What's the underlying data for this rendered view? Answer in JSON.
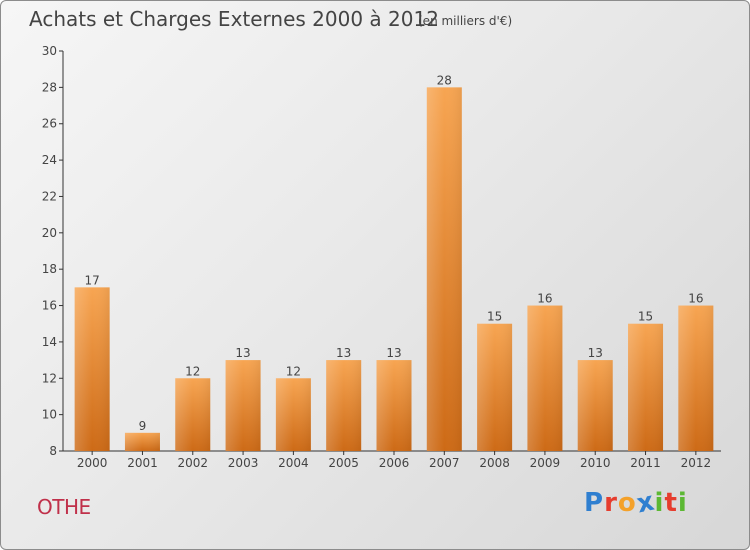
{
  "title": "Achats et Charges Externes 2000 à 2012",
  "subtitle": "(en milliers d'€)",
  "place": "OTHE",
  "logo": {
    "text": "Proxiti",
    "letters": [
      {
        "char": "P",
        "color": "#2f7fd0"
      },
      {
        "char": "r",
        "color": "#e63d2e"
      },
      {
        "char": "o",
        "color": "#f4a12a"
      },
      {
        "char": "x",
        "color": "#2f7fd0"
      },
      {
        "char": "i",
        "color": "#5cb833"
      },
      {
        "char": "t",
        "color": "#e63d2e"
      },
      {
        "char": "i",
        "color": "#5cb833"
      }
    ]
  },
  "colors": {
    "bar_light": "#f7a552",
    "bar_dark": "#cd6a16",
    "axis": "#333333",
    "place": "#c0304a"
  },
  "chart_data": {
    "type": "bar",
    "title": "Achats et Charges Externes 2000 à 2012",
    "subtitle": "(en milliers d'€)",
    "categories": [
      "2000",
      "2001",
      "2002",
      "2003",
      "2004",
      "2005",
      "2006",
      "2007",
      "2008",
      "2009",
      "2010",
      "2011",
      "2012"
    ],
    "values": [
      17,
      9,
      12,
      13,
      12,
      13,
      13,
      28,
      15,
      16,
      13,
      15,
      16
    ],
    "ylim": [
      8,
      30
    ],
    "yticks": [
      8,
      10,
      12,
      14,
      16,
      18,
      20,
      22,
      24,
      26,
      28,
      30
    ],
    "grid": false,
    "data_labels": true
  }
}
